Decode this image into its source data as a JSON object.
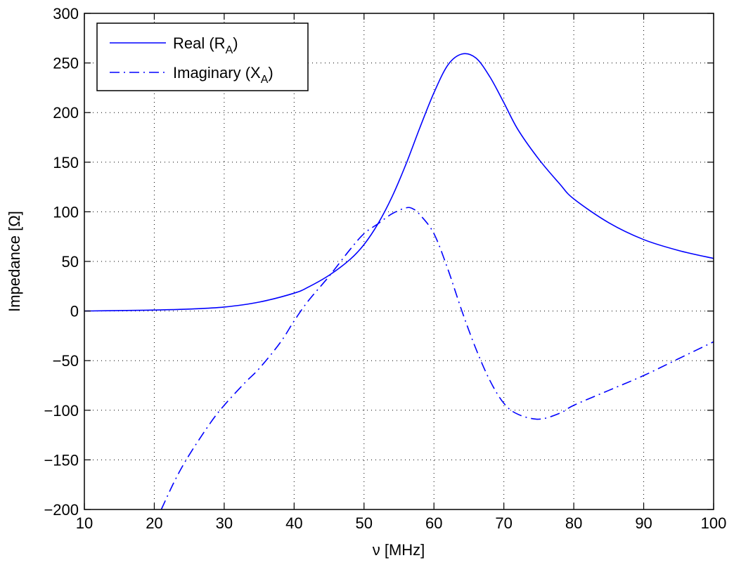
{
  "chart_data": {
    "type": "line",
    "xlabel": "ν [MHz]",
    "ylabel": "Impedance [Ω]",
    "xlim": [
      10,
      100
    ],
    "ylim": [
      -200,
      300
    ],
    "xticks": [
      10,
      20,
      30,
      40,
      50,
      60,
      70,
      80,
      90,
      100
    ],
    "yticks": [
      -200,
      -150,
      -100,
      -50,
      0,
      50,
      100,
      150,
      200,
      250,
      300
    ],
    "xtick_labels": [
      "10",
      "20",
      "30",
      "40",
      "50",
      "60",
      "70",
      "80",
      "90",
      "100"
    ],
    "ytick_labels": [
      "−200",
      "−150",
      "−100",
      "−50",
      "0",
      "50",
      "100",
      "150",
      "200",
      "250",
      "300"
    ],
    "grid": true,
    "legend_position": "top-left",
    "series": [
      {
        "name": "Real (R_A)",
        "legend_main": "Real (R",
        "legend_sub": "A",
        "legend_close": ")",
        "style": "solid",
        "color": "#0000ff",
        "x": [
          10,
          15,
          20,
          25,
          30,
          35,
          40,
          42,
          45,
          48,
          50,
          52,
          54,
          56,
          58,
          60,
          62,
          64,
          66,
          68,
          70,
          72,
          75,
          78,
          80,
          85,
          90,
          95,
          100
        ],
        "y": [
          0,
          0.5,
          1,
          2,
          4,
          9,
          18,
          24,
          36,
          52,
          67,
          88,
          115,
          148,
          185,
          220,
          248,
          259,
          255,
          236,
          210,
          183,
          153,
          128,
          113,
          89,
          72,
          61,
          53
        ]
      },
      {
        "name": "Imaginary (X_A)",
        "legend_main": "Imaginary (X",
        "legend_sub": "A",
        "legend_close": ")",
        "style": "dashdot",
        "color": "#0000ff",
        "x": [
          21,
          23,
          25,
          28,
          30,
          33,
          35,
          38,
          40,
          42,
          45,
          48,
          50,
          52,
          54,
          56,
          57,
          58,
          60,
          62,
          64,
          66,
          68,
          70,
          72,
          75,
          78,
          80,
          85,
          90,
          95,
          100
        ],
        "y": [
          -200,
          -170,
          -145,
          -113,
          -95,
          -72,
          -58,
          -32,
          -10,
          10,
          35,
          62,
          78,
          88,
          98,
          104,
          103,
          97,
          78,
          42,
          0,
          -38,
          -70,
          -93,
          -104,
          -109,
          -103,
          -95,
          -80,
          -65,
          -48,
          -31
        ]
      }
    ]
  }
}
